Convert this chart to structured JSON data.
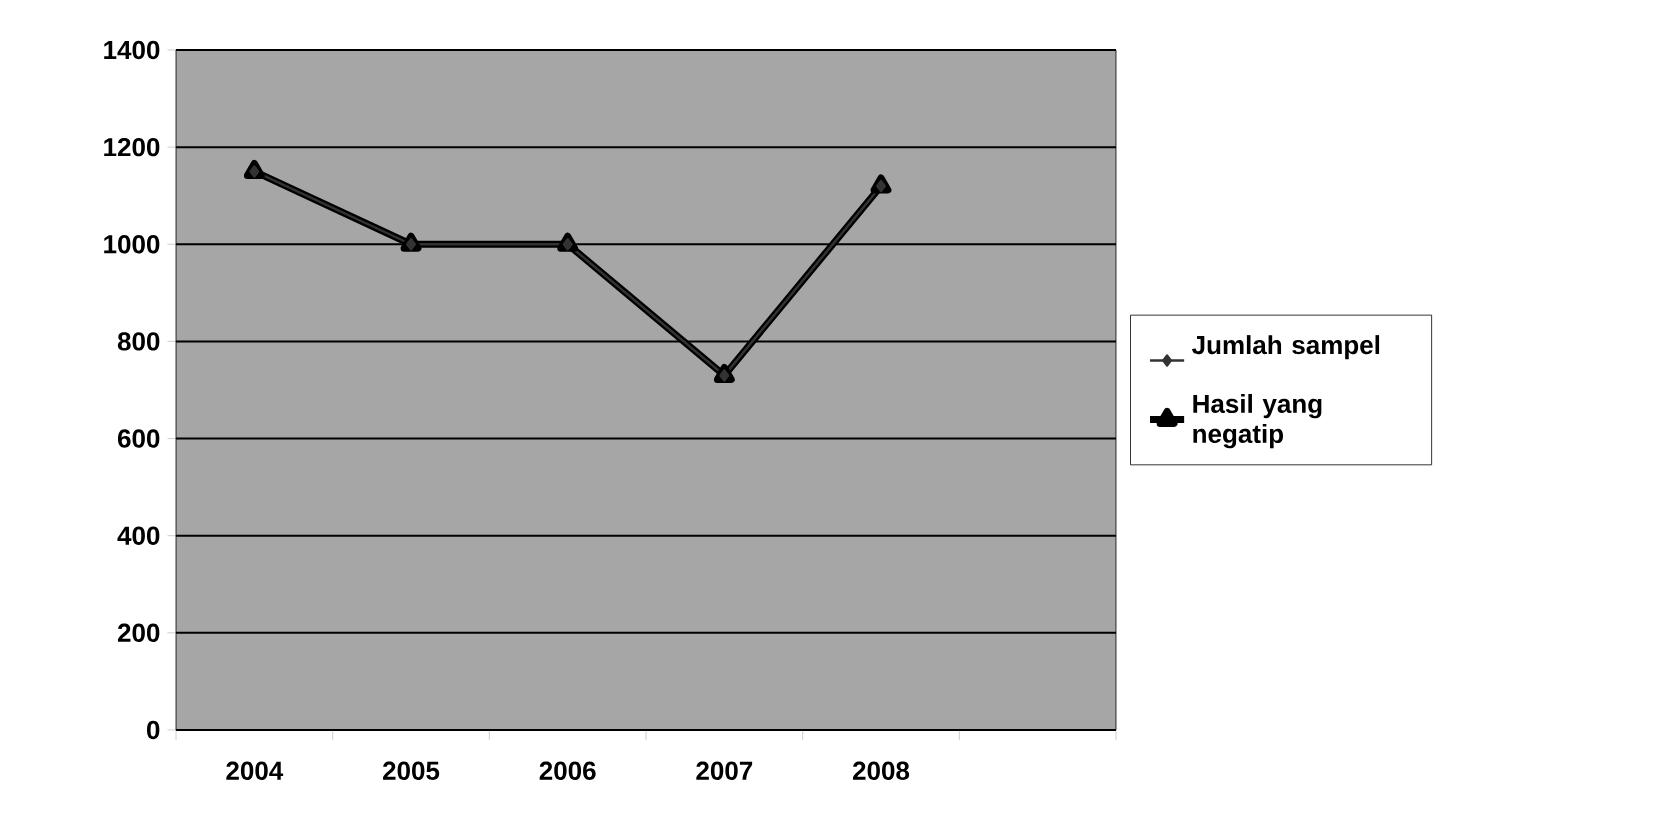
{
  "chart_data": {
    "type": "line",
    "categories": [
      "2004",
      "2005",
      "2006",
      "2007",
      "2008",
      null
    ],
    "series": [
      {
        "name": "Jumlah sampel",
        "color": "#333333",
        "marker": "diamond",
        "values": [
          1150,
          1000,
          1000,
          730,
          1120,
          null
        ]
      },
      {
        "name": "Hasil yang negatip",
        "color": "#000000",
        "marker": "triangle",
        "values": [
          1150,
          1000,
          1000,
          730,
          1120,
          null
        ]
      }
    ],
    "ylim": [
      0,
      1400
    ],
    "yticks": [
      0,
      200,
      400,
      600,
      800,
      1000,
      1200,
      1400
    ],
    "grid": "y",
    "legend": "right"
  }
}
